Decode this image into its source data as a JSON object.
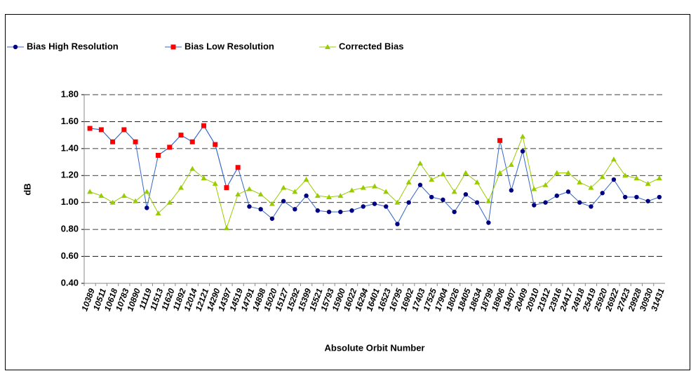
{
  "chart_data": {
    "type": "line",
    "x_label": "Absolute Orbit Number",
    "y_label": "dB",
    "categories": [
      "10389",
      "10511",
      "10618",
      "10783",
      "10890",
      "11119",
      "11513",
      "11620",
      "11892",
      "12014",
      "12121",
      "14290",
      "14397",
      "14519",
      "14791",
      "14898",
      "15020",
      "15127",
      "15292",
      "15399",
      "15521",
      "15793",
      "15900",
      "16022",
      "16294",
      "16401",
      "16523",
      "16795",
      "16902",
      "17403",
      "17525",
      "17904",
      "18026",
      "18405",
      "18634",
      "18799",
      "18906",
      "19407",
      "20409",
      "20910",
      "21912",
      "23916",
      "24417",
      "24918",
      "25419",
      "25920",
      "26922",
      "27423",
      "29928",
      "30930",
      "31431"
    ],
    "series": [
      {
        "name": "Bias High Resolution",
        "color": "#3366cc",
        "marker_color": "#000080",
        "marker": "circle",
        "values": [
          1.55,
          1.54,
          1.45,
          1.54,
          1.45,
          0.96,
          1.35,
          1.41,
          1.5,
          1.45,
          1.57,
          1.43,
          1.11,
          1.26,
          0.97,
          0.95,
          0.88,
          1.01,
          0.95,
          1.05,
          0.94,
          0.93,
          0.93,
          0.94,
          0.97,
          0.99,
          0.97,
          0.84,
          1.0,
          1.13,
          1.04,
          1.02,
          0.93,
          1.06,
          1.0,
          0.85,
          1.46,
          1.09,
          1.38,
          0.98,
          1.0,
          1.05,
          1.08,
          1.0,
          0.97,
          1.07,
          1.17,
          1.04,
          1.04,
          1.01,
          1.04
        ]
      },
      {
        "name": "Bias Low Resolution",
        "color": "#3366cc",
        "marker_color": "#ff0000",
        "marker": "square",
        "values": [
          1.55,
          1.54,
          1.45,
          1.54,
          1.45,
          null,
          1.35,
          1.41,
          1.5,
          1.45,
          1.57,
          1.43,
          1.11,
          1.26,
          null,
          null,
          null,
          null,
          null,
          null,
          null,
          null,
          null,
          null,
          null,
          null,
          null,
          null,
          null,
          null,
          null,
          null,
          null,
          null,
          null,
          null,
          1.46,
          null,
          null,
          null,
          null,
          null,
          null,
          null,
          null,
          null,
          null,
          null,
          null,
          null,
          null
        ]
      },
      {
        "name": "Corrected Bias",
        "color": "#99cc00",
        "marker_color": "#99cc00",
        "marker": "triangle",
        "values": [
          1.08,
          1.05,
          1.0,
          1.05,
          1.01,
          1.08,
          0.92,
          1.0,
          1.11,
          1.25,
          1.18,
          1.14,
          0.81,
          1.06,
          1.1,
          1.06,
          0.99,
          1.11,
          1.08,
          1.17,
          1.05,
          1.04,
          1.05,
          1.09,
          1.11,
          1.12,
          1.08,
          1.0,
          1.15,
          1.29,
          1.17,
          1.21,
          1.08,
          1.22,
          1.15,
          1.01,
          1.22,
          1.28,
          1.49,
          1.1,
          1.13,
          1.22,
          1.22,
          1.15,
          1.11,
          1.19,
          1.32,
          1.2,
          1.18,
          1.14,
          1.18
        ]
      }
    ],
    "ylim": [
      0.4,
      1.8
    ],
    "yticks": [
      {
        "value": 0.4,
        "label": "0.40"
      },
      {
        "value": 0.6,
        "label": "0.60"
      },
      {
        "value": 0.8,
        "label": "0.80"
      },
      {
        "value": 1.0,
        "label": "1.00"
      },
      {
        "value": 1.2,
        "label": "1.20"
      },
      {
        "value": 1.4,
        "label": "1.40"
      },
      {
        "value": 1.6,
        "label": "1.60"
      },
      {
        "value": 1.8,
        "label": "1.80"
      }
    ],
    "grid": true,
    "legend": "top"
  }
}
